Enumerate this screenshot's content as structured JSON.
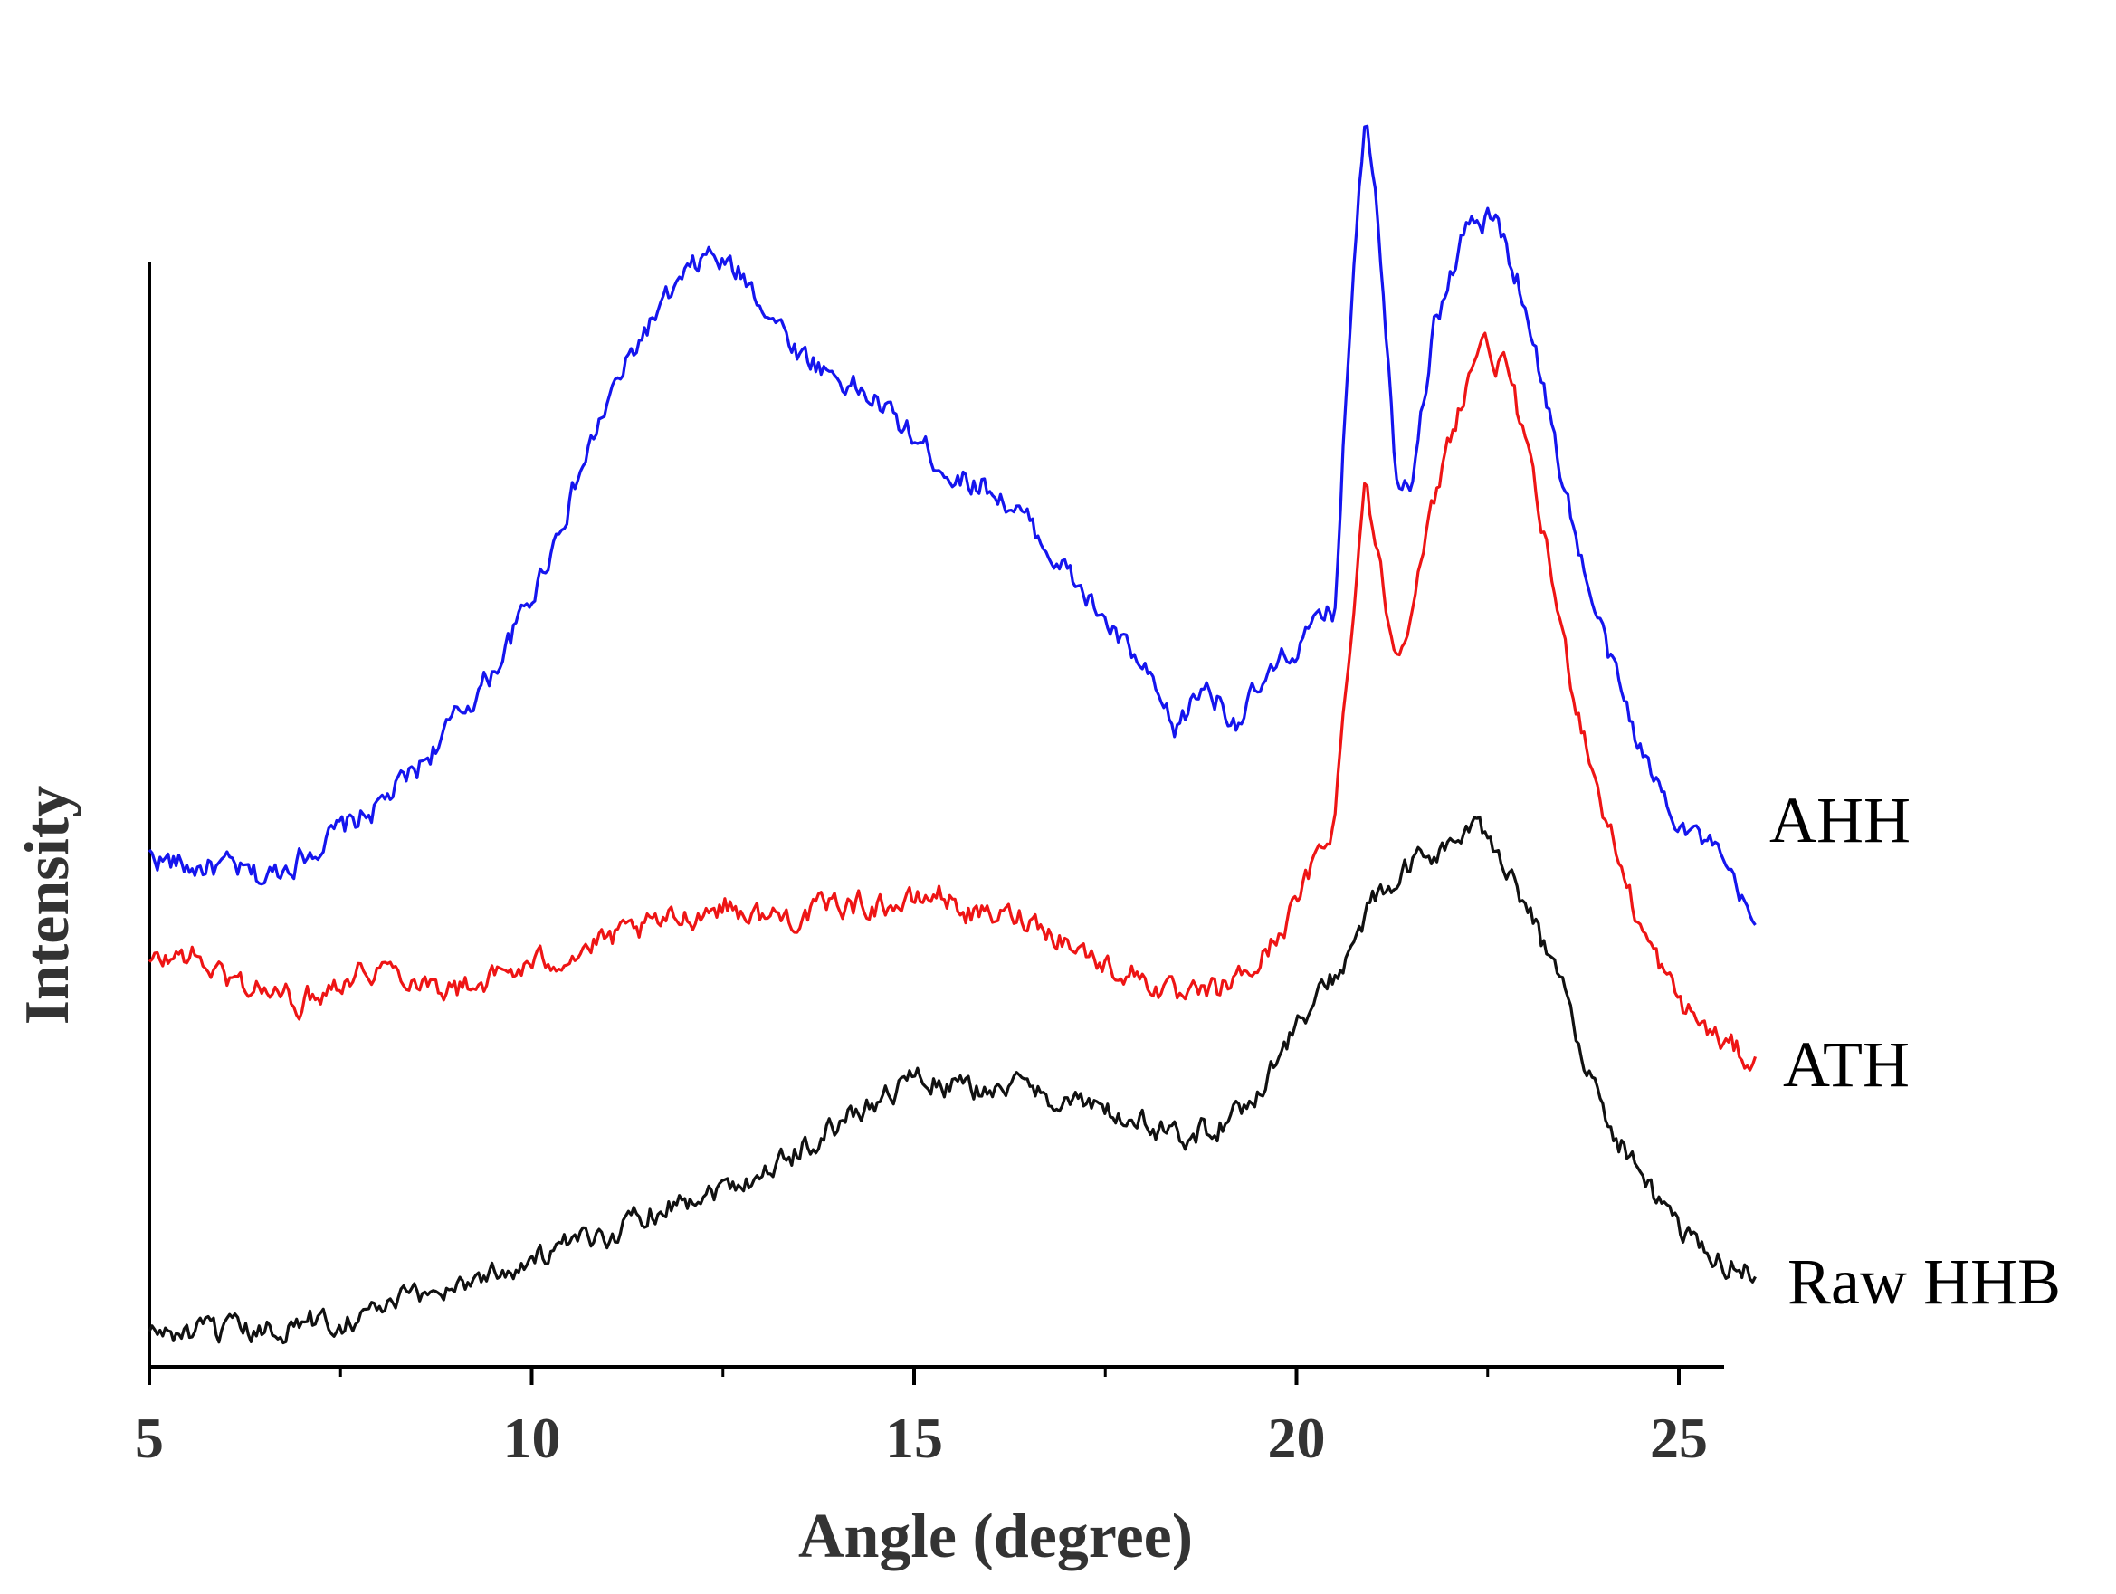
{
  "chart_data": {
    "type": "line",
    "title": "",
    "xlabel": "Angle (degree)",
    "ylabel": "Intensity",
    "xlim": [
      5,
      26.5
    ],
    "ylim": [
      0,
      110
    ],
    "xticks": [
      5,
      10,
      15,
      20,
      25
    ],
    "grid": false,
    "legend": "inline-right",
    "series": [
      {
        "name": "AHH",
        "color": "#1515ee",
        "points": [
          [
            5.0,
            41
          ],
          [
            5.5,
            40
          ],
          [
            6.0,
            40
          ],
          [
            6.5,
            39
          ],
          [
            7.0,
            41
          ],
          [
            7.5,
            43
          ],
          [
            8.0,
            45
          ],
          [
            8.5,
            48
          ],
          [
            9.0,
            52
          ],
          [
            9.5,
            56
          ],
          [
            10.0,
            62
          ],
          [
            10.5,
            70
          ],
          [
            11.0,
            78
          ],
          [
            11.5,
            84
          ],
          [
            12.0,
            88
          ],
          [
            12.3,
            90
          ],
          [
            12.8,
            88
          ],
          [
            13.5,
            82
          ],
          [
            14.0,
            80
          ],
          [
            14.5,
            78
          ],
          [
            15.0,
            75
          ],
          [
            15.5,
            72
          ],
          [
            16.0,
            71
          ],
          [
            16.5,
            68
          ],
          [
            17.0,
            64
          ],
          [
            17.5,
            60
          ],
          [
            18.0,
            56
          ],
          [
            18.4,
            51
          ],
          [
            18.8,
            55
          ],
          [
            19.2,
            52
          ],
          [
            19.6,
            55
          ],
          [
            20.0,
            58
          ],
          [
            20.5,
            61
          ],
          [
            20.75,
            90
          ],
          [
            20.9,
            102
          ],
          [
            21.05,
            95
          ],
          [
            21.3,
            72
          ],
          [
            21.5,
            72
          ],
          [
            21.8,
            84
          ],
          [
            22.2,
            92
          ],
          [
            22.6,
            93
          ],
          [
            23.0,
            86
          ],
          [
            23.4,
            74
          ],
          [
            23.8,
            63
          ],
          [
            24.2,
            55
          ],
          [
            24.6,
            48
          ],
          [
            25.0,
            44
          ],
          [
            25.5,
            41
          ],
          [
            26.0,
            35
          ]
        ]
      },
      {
        "name": "ATH",
        "color": "#ee1515",
        "points": [
          [
            5.0,
            32
          ],
          [
            5.5,
            33
          ],
          [
            6.0,
            31
          ],
          [
            6.5,
            30
          ],
          [
            7.0,
            29
          ],
          [
            7.5,
            31
          ],
          [
            8.0,
            32
          ],
          [
            8.5,
            31
          ],
          [
            9.0,
            30
          ],
          [
            9.5,
            31
          ],
          [
            10.0,
            32
          ],
          [
            10.5,
            33
          ],
          [
            11.0,
            34
          ],
          [
            11.5,
            35
          ],
          [
            12.0,
            36
          ],
          [
            12.5,
            37
          ],
          [
            13.0,
            36
          ],
          [
            13.5,
            36
          ],
          [
            14.0,
            37
          ],
          [
            14.5,
            37
          ],
          [
            15.0,
            37
          ],
          [
            15.3,
            38
          ],
          [
            15.8,
            36
          ],
          [
            16.5,
            36
          ],
          [
            17.0,
            34
          ],
          [
            17.5,
            32
          ],
          [
            18.0,
            31
          ],
          [
            18.5,
            29
          ],
          [
            19.0,
            30
          ],
          [
            19.5,
            32
          ],
          [
            20.0,
            37
          ],
          [
            20.5,
            44
          ],
          [
            20.75,
            62
          ],
          [
            20.9,
            72
          ],
          [
            21.1,
            64
          ],
          [
            21.3,
            57
          ],
          [
            21.6,
            64
          ],
          [
            22.0,
            75
          ],
          [
            22.4,
            83
          ],
          [
            22.8,
            80
          ],
          [
            23.2,
            68
          ],
          [
            23.6,
            55
          ],
          [
            24.0,
            45
          ],
          [
            24.5,
            35
          ],
          [
            25.0,
            29
          ],
          [
            25.5,
            26
          ],
          [
            26.0,
            24
          ]
        ]
      },
      {
        "name": "Raw HHB",
        "color": "#111111",
        "points": [
          [
            5.0,
            2
          ],
          [
            5.5,
            2
          ],
          [
            6.0,
            2
          ],
          [
            6.5,
            2
          ],
          [
            7.0,
            3
          ],
          [
            7.5,
            3
          ],
          [
            8.0,
            4
          ],
          [
            8.5,
            5
          ],
          [
            9.0,
            6
          ],
          [
            9.5,
            7
          ],
          [
            10.0,
            8
          ],
          [
            10.5,
            9
          ],
          [
            11.0,
            10
          ],
          [
            11.5,
            12
          ],
          [
            12.0,
            13
          ],
          [
            12.5,
            14
          ],
          [
            13.0,
            15
          ],
          [
            13.5,
            17
          ],
          [
            14.0,
            19
          ],
          [
            14.5,
            21
          ],
          [
            15.0,
            23
          ],
          [
            15.5,
            22
          ],
          [
            16.0,
            22
          ],
          [
            16.5,
            22
          ],
          [
            17.0,
            21
          ],
          [
            17.5,
            20
          ],
          [
            18.0,
            19
          ],
          [
            18.5,
            18
          ],
          [
            19.0,
            19
          ],
          [
            19.3,
            20
          ],
          [
            19.6,
            23
          ],
          [
            20.0,
            27
          ],
          [
            20.5,
            31
          ],
          [
            21.0,
            37
          ],
          [
            21.5,
            40
          ],
          [
            22.0,
            42
          ],
          [
            22.4,
            43
          ],
          [
            22.8,
            40
          ],
          [
            23.2,
            34
          ],
          [
            23.6,
            28
          ],
          [
            24.0,
            20
          ],
          [
            24.5,
            15
          ],
          [
            25.0,
            10
          ],
          [
            25.5,
            8
          ],
          [
            26.0,
            7
          ]
        ]
      }
    ]
  }
}
